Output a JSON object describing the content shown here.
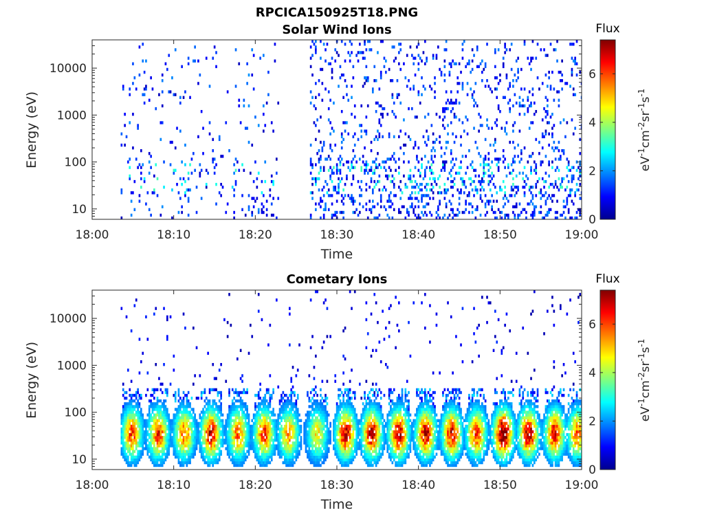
{
  "figure": {
    "title": "RPCICA150925T18.PNG"
  },
  "chart_data": [
    {
      "type": "heatmap",
      "title": "Solar Wind Ions",
      "xlabel": "Time",
      "ylabel": "Energy (eV)",
      "x_ticks": [
        "18:00",
        "18:10",
        "18:20",
        "18:30",
        "18:40",
        "18:50",
        "19:00"
      ],
      "x_range": [
        "18:00",
        "19:00"
      ],
      "y_ticks": [
        "10",
        "100",
        "1000",
        "10000"
      ],
      "y_scale": "log",
      "y_range": [
        6,
        40000
      ],
      "colorbar": {
        "title": "Flux",
        "label": "eV-1cm-2sr-1s-1",
        "ticks": [
          "0",
          "2",
          "4",
          "6"
        ],
        "range": [
          0,
          7.4
        ],
        "colormap": "jet"
      },
      "data_gaps_minutes": [
        [
          0,
          3.5
        ],
        [
          22.8,
          26.5
        ]
      ],
      "description_pattern": "sparse low-flux counts (0-2.5) across all energies, higher density after 18:27; occasional cyan/green near 40-100 eV"
    },
    {
      "type": "heatmap",
      "title": "Cometary Ions",
      "xlabel": "Time",
      "ylabel": "Energy (eV)",
      "x_ticks": [
        "18:00",
        "18:10",
        "18:20",
        "18:30",
        "18:40",
        "18:50",
        "19:00"
      ],
      "x_range": [
        "18:00",
        "19:00"
      ],
      "y_ticks": [
        "10",
        "100",
        "1000",
        "10000"
      ],
      "y_scale": "log",
      "y_range": [
        6,
        40000
      ],
      "colorbar": {
        "title": "Flux",
        "label": "eV-1cm-2sr-1s-1",
        "ticks": [
          "0",
          "2",
          "4",
          "6"
        ],
        "range": [
          0,
          7.4
        ],
        "colormap": "jet"
      },
      "burst_centers_minutes": [
        4.8,
        8,
        11.2,
        14.5,
        17.8,
        21,
        24,
        27.5,
        31,
        34.2,
        37.5,
        40.8,
        44,
        47,
        50.3,
        53.4,
        56.6,
        59.4
      ],
      "burst_peak_flux": [
        4.8,
        5.0,
        4.6,
        5.6,
        4.4,
        5.0,
        4.2,
        3.4,
        5.8,
        5.6,
        5.8,
        5.6,
        5.4,
        4.8,
        6.6,
        5.8,
        5.4,
        4.6
      ],
      "burst_peak_energy_eV": 35
    }
  ]
}
